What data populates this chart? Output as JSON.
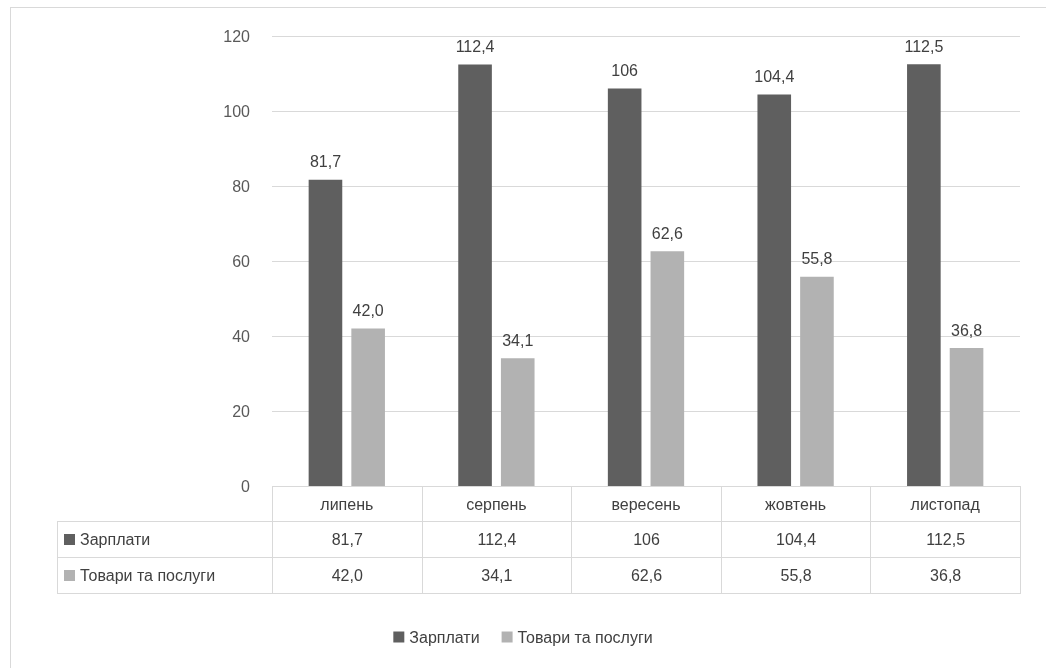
{
  "chart_data": {
    "type": "bar",
    "categories": [
      "липень",
      "серпень",
      "вересень",
      "жовтень",
      "листопад"
    ],
    "series": [
      {
        "name": "Зарплати",
        "color": "#5f5f5f",
        "values": [
          81.7,
          112.4,
          106,
          104.4,
          112.5
        ],
        "value_labels": [
          "81,7",
          "112,4",
          "106",
          "104,4",
          "112,5"
        ]
      },
      {
        "name": "Товари та послуги",
        "color": "#b2b2b2",
        "values": [
          42.0,
          34.1,
          62.6,
          55.8,
          36.8
        ],
        "value_labels": [
          "42,0",
          "34,1",
          "62,6",
          "55,8",
          "36,8"
        ]
      }
    ],
    "ylim": [
      0,
      120
    ],
    "yticks": [
      0,
      20,
      40,
      60,
      80,
      100,
      120
    ],
    "grid": "y",
    "legend": "bottom"
  }
}
